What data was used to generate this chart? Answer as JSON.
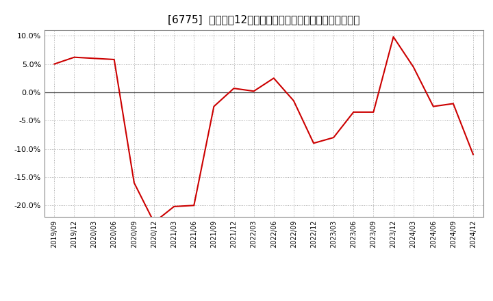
{
  "title": "[6775]  売上高の12か月移動合計の対前年同期増減率の推移",
  "x_labels": [
    "2019/09",
    "2019/12",
    "2020/03",
    "2020/06",
    "2020/09",
    "2020/12",
    "2021/03",
    "2021/06",
    "2021/09",
    "2021/12",
    "2022/03",
    "2022/06",
    "2022/09",
    "2022/12",
    "2023/03",
    "2023/06",
    "2023/09",
    "2023/12",
    "2024/03",
    "2024/06",
    "2024/09",
    "2024/12"
  ],
  "y_values": [
    5.0,
    6.2,
    6.0,
    5.8,
    -16.0,
    -23.0,
    -20.2,
    -20.0,
    -2.5,
    0.7,
    0.2,
    2.5,
    -1.5,
    -9.0,
    -8.0,
    -3.5,
    -3.5,
    9.8,
    4.5,
    -2.5,
    -2.0,
    -11.0
  ],
  "line_color": "#cc0000",
  "background_color": "#ffffff",
  "plot_bg_color": "#ffffff",
  "grid_color": "#aaaaaa",
  "ylim": [
    -22,
    11
  ],
  "yticks": [
    -20.0,
    -15.0,
    -10.0,
    -5.0,
    0.0,
    5.0,
    10.0
  ],
  "title_fontsize": 11,
  "tick_fontsize": 8,
  "xtick_fontsize": 7
}
